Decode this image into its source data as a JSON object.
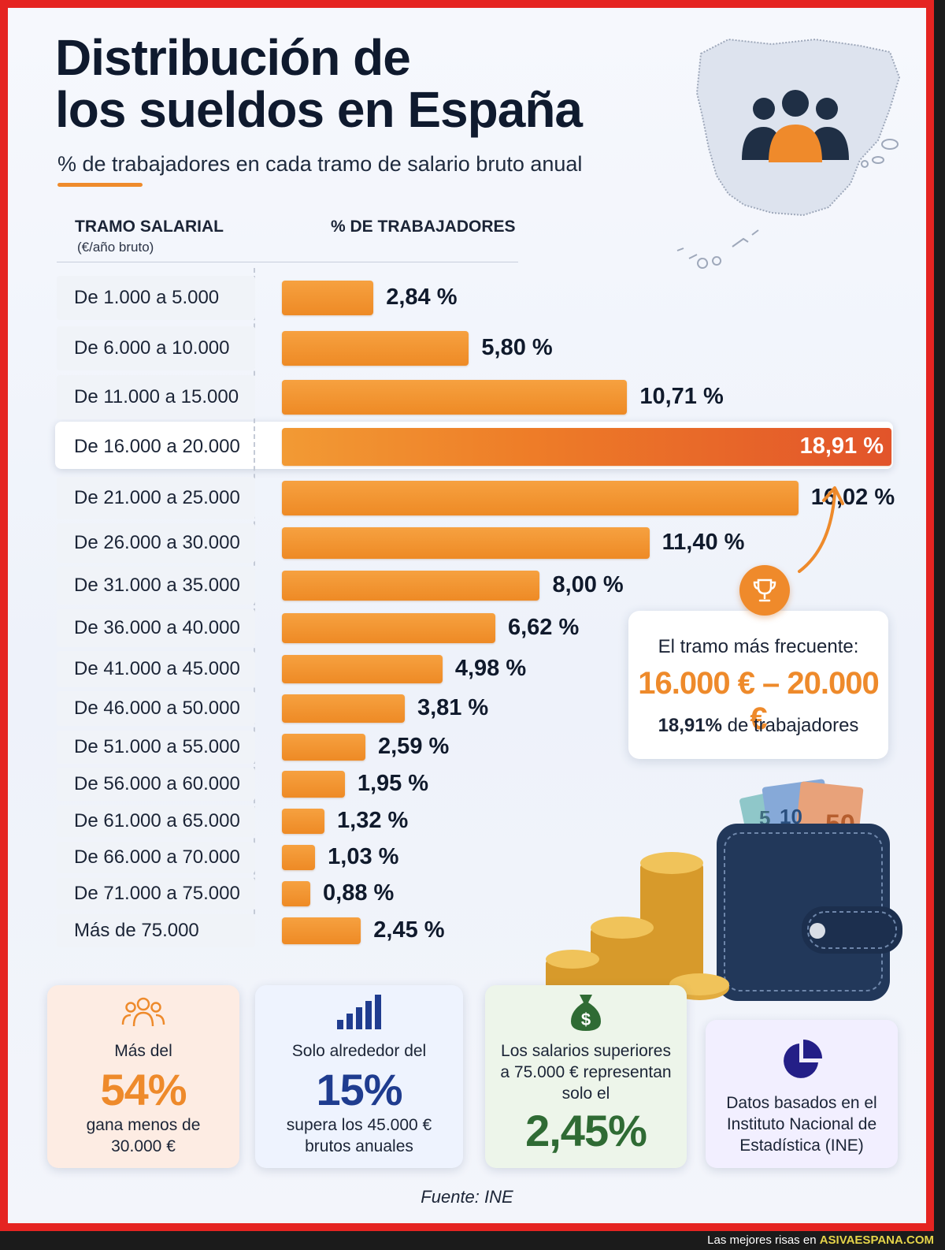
{
  "title_line1": "Distribución de",
  "title_line2": "los sueldos en España",
  "subtitle": "% de trabajadores en cada tramo de salario bruto anual",
  "columns": {
    "range_header": "TRAMO SALARIAL",
    "range_unit": "(€/año bruto)",
    "pct_header": "% DE TRABAJADORES"
  },
  "chart_data": {
    "type": "bar",
    "orientation": "horizontal",
    "categories": [
      "De 1.000 a 5.000",
      "De 6.000 a 10.000",
      "De 11.000 a 15.000",
      "De 16.000 a 20.000",
      "De 21.000 a 25.000",
      "De 26.000 a 30.000",
      "De 31.000 a 35.000",
      "De 36.000 a 40.000",
      "De 41.000 a 45.000",
      "De 46.000 a 50.000",
      "De 51.000 a 55.000",
      "De 56.000 a 60.000",
      "De 61.000 a 65.000",
      "De 66.000 a 70.000",
      "De 71.000 a 75.000",
      "Más de 75.000"
    ],
    "values": [
      2.84,
      5.8,
      10.71,
      18.91,
      16.02,
      11.4,
      8.0,
      6.62,
      4.98,
      3.81,
      2.59,
      1.95,
      1.32,
      1.03,
      0.88,
      2.45
    ],
    "value_labels": [
      "2,84 %",
      "5,80 %",
      "10,71 %",
      "18,91 %",
      "16,02 %",
      "11,40 %",
      "8,00 %",
      "6,62 %",
      "4,98 %",
      "3,81 %",
      "2,59 %",
      "1,95 %",
      "1,32 %",
      "1,03 %",
      "0,88 %",
      "2,45 %"
    ],
    "highlight_index": 3,
    "xlim": [
      0,
      18.91
    ],
    "grid": false,
    "colors": {
      "bar": "#f0922f",
      "highlight_start": "#f29a34",
      "highlight_end": "#e2542a"
    }
  },
  "callout": {
    "label": "El tramo más frecuente:",
    "range": "16.000 € – 20.000 €",
    "pct": "18,91%",
    "pct_suffix": " de trabajadores",
    "icon": "trophy-icon"
  },
  "cards": [
    {
      "icon": "people-icon",
      "text_top": "Más del",
      "big": "54%",
      "text_bottom_1": "gana menos de",
      "text_bottom_2": "30.000 €",
      "color": "#ee8a2b"
    },
    {
      "icon": "bar-chart-icon",
      "text_top": "Solo alrededor del",
      "big": "15%",
      "text_bottom_1": "supera los 45.000 €",
      "text_bottom_2": "brutos anuales",
      "color": "#1f3c8f"
    },
    {
      "icon": "money-bag-icon",
      "text_top_1": "Los salarios superiores",
      "text_top_2": "a 75.000 € representan",
      "text_top_3": "solo el",
      "big": "2,45%",
      "color": "#2f6b34"
    },
    {
      "icon": "pie-chart-icon",
      "text_1": "Datos basados en el",
      "text_2": "Instituto Nacional de",
      "text_3": "Estadística (INE)",
      "color": "#241f87"
    }
  ],
  "source": "Fuente: INE",
  "footer": {
    "prefix": "Las mejores risas en ",
    "site": "ASIVAESPANA.COM"
  },
  "map_icon": "spain-map-icon"
}
